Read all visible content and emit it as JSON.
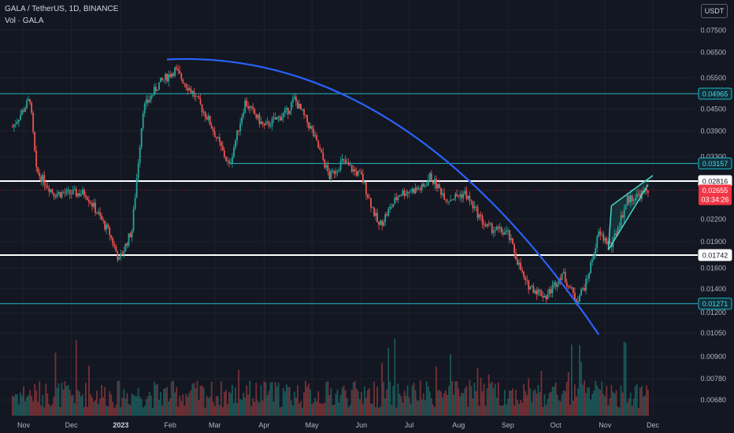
{
  "header": {
    "title": "GALA / TetherUS, 1D, BINANCE",
    "volume_label": "Vol · GALA"
  },
  "currency_button": "USDT",
  "colors": {
    "background": "#131722",
    "up": "#26a69a",
    "down": "#ef5350",
    "curve": "#2962ff",
    "cyan_line": "#22b8c8",
    "white_line": "#ffffff",
    "price_label": "#f23645"
  },
  "chart_data": {
    "type": "candlestick",
    "title": "GALA / TetherUS, 1D, BINANCE",
    "x_ticks": [
      "Nov",
      "Dec",
      "2023",
      "Feb",
      "Mar",
      "Apr",
      "May",
      "Jun",
      "Jul",
      "Aug",
      "Sep",
      "Oct",
      "Nov",
      "Dec"
    ],
    "y_ticks": [
      "0.07500",
      "0.06500",
      "0.05500",
      "0.04500",
      "0.03900",
      "0.03300",
      "0.02200",
      "0.01900",
      "0.01600",
      "0.01400",
      "0.01200",
      "0.01050",
      "0.00900",
      "0.00780",
      "0.00680"
    ],
    "y_scale": "log",
    "horizontal_levels": [
      {
        "label": "0.04965",
        "value": 0.04965,
        "style": "cyan"
      },
      {
        "label": "0.03157",
        "value": 0.03157,
        "style": "cyan"
      },
      {
        "label": "0.02816",
        "value": 0.02816,
        "style": "white"
      },
      {
        "label": "0.01742",
        "value": 0.01742,
        "style": "white"
      },
      {
        "label": "0.01271",
        "value": 0.01271,
        "style": "cyan"
      }
    ],
    "last_price": {
      "value": 0.02655,
      "label": "0.02655",
      "countdown": "03:34:26"
    },
    "price_path": [
      [
        "2022-10-25",
        0.04
      ],
      [
        "2022-11-05",
        0.048
      ],
      [
        "2022-11-09",
        0.03
      ],
      [
        "2022-11-20",
        0.026
      ],
      [
        "2022-12-10",
        0.026
      ],
      [
        "2022-12-25",
        0.02
      ],
      [
        "2022-12-31",
        0.0168
      ],
      [
        "2023-01-08",
        0.0205
      ],
      [
        "2023-01-15",
        0.045
      ],
      [
        "2023-01-25",
        0.053
      ],
      [
        "2023-02-04",
        0.058
      ],
      [
        "2023-02-15",
        0.05
      ],
      [
        "2023-02-25",
        0.042
      ],
      [
        "2023-03-10",
        0.031
      ],
      [
        "2023-03-20",
        0.047
      ],
      [
        "2023-04-01",
        0.04
      ],
      [
        "2023-04-15",
        0.044
      ],
      [
        "2023-04-20",
        0.048
      ],
      [
        "2023-05-01",
        0.039
      ],
      [
        "2023-05-12",
        0.029
      ],
      [
        "2023-05-20",
        0.032
      ],
      [
        "2023-06-01",
        0.029
      ],
      [
        "2023-06-12",
        0.021
      ],
      [
        "2023-06-25",
        0.026
      ],
      [
        "2023-07-10",
        0.027
      ],
      [
        "2023-07-14",
        0.029
      ],
      [
        "2023-07-25",
        0.025
      ],
      [
        "2023-08-05",
        0.026
      ],
      [
        "2023-08-18",
        0.021
      ],
      [
        "2023-09-01",
        0.02
      ],
      [
        "2023-09-12",
        0.0145
      ],
      [
        "2023-09-25",
        0.0133
      ],
      [
        "2023-10-05",
        0.0155
      ],
      [
        "2023-10-14",
        0.013
      ],
      [
        "2023-10-20",
        0.0145
      ],
      [
        "2023-10-28",
        0.02
      ],
      [
        "2023-11-05",
        0.0185
      ],
      [
        "2023-11-15",
        0.025
      ],
      [
        "2023-11-25",
        0.026
      ],
      [
        "2023-11-28",
        0.02655
      ]
    ],
    "drawings": [
      {
        "type": "curve",
        "color": "blue",
        "from": [
          "2023-01-30",
          0.062
        ],
        "to": [
          "2023-10-28",
          0.0104
        ]
      },
      {
        "type": "rising_wedge",
        "upper": [
          [
            "2023-11-05",
            0.024
          ],
          [
            "2023-12-01",
            0.0292
          ]
        ],
        "lower": [
          [
            "2023-11-03",
            0.018
          ],
          [
            "2023-11-28",
            0.0275
          ]
        ]
      }
    ]
  }
}
